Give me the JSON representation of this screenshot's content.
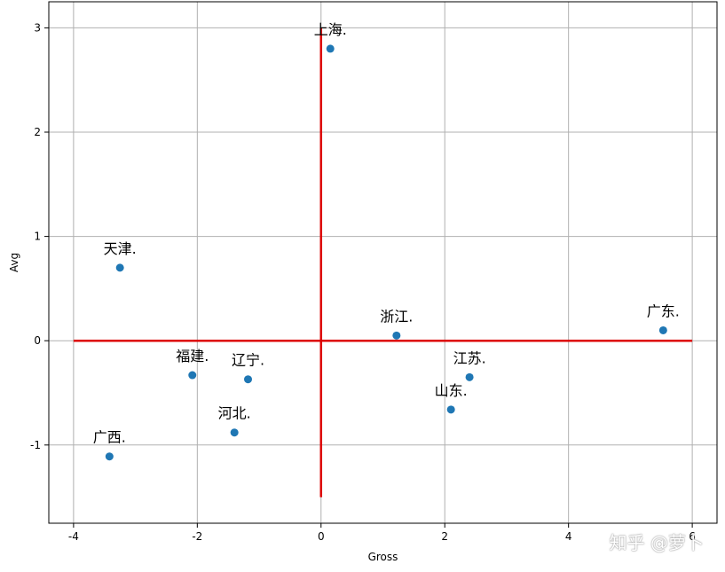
{
  "chart_data": {
    "type": "scatter",
    "title": "",
    "xlabel": "Gross",
    "ylabel": "Avg",
    "xlim": [
      -4.4,
      6.4
    ],
    "ylim": [
      -1.75,
      3.25
    ],
    "xticks": [
      -4,
      -2,
      0,
      2,
      4,
      6
    ],
    "yticks": [
      -1,
      0,
      1,
      2,
      3
    ],
    "xtick_labels": [
      "-4",
      "-2",
      "0",
      "2",
      "4",
      "6"
    ],
    "ytick_labels": [
      "-1",
      "0",
      "1",
      "2",
      "3"
    ],
    "grid": true,
    "point_color": "#1f77b4",
    "reference_line_color": "#dd0000",
    "reference_lines": {
      "horizontal": {
        "y": 0,
        "x_from": -4,
        "x_to": 6
      },
      "vertical": {
        "x": 0,
        "y_from": -1.5,
        "y_to": 3
      }
    },
    "points": [
      {
        "label": "上海.",
        "x": 0.15,
        "y": 2.8
      },
      {
        "label": "天津.",
        "x": -3.25,
        "y": 0.7
      },
      {
        "label": "浙江.",
        "x": 1.22,
        "y": 0.05
      },
      {
        "label": "广东.",
        "x": 5.53,
        "y": 0.1
      },
      {
        "label": "福建.",
        "x": -2.08,
        "y": -0.33
      },
      {
        "label": "辽宁.",
        "x": -1.18,
        "y": -0.37
      },
      {
        "label": "江苏.",
        "x": 2.4,
        "y": -0.35
      },
      {
        "label": "山东.",
        "x": 2.1,
        "y": -0.66
      },
      {
        "label": "河北.",
        "x": -1.4,
        "y": -0.88
      },
      {
        "label": "广西.",
        "x": -3.42,
        "y": -1.11
      }
    ]
  },
  "watermark": "知乎 @萝卜"
}
